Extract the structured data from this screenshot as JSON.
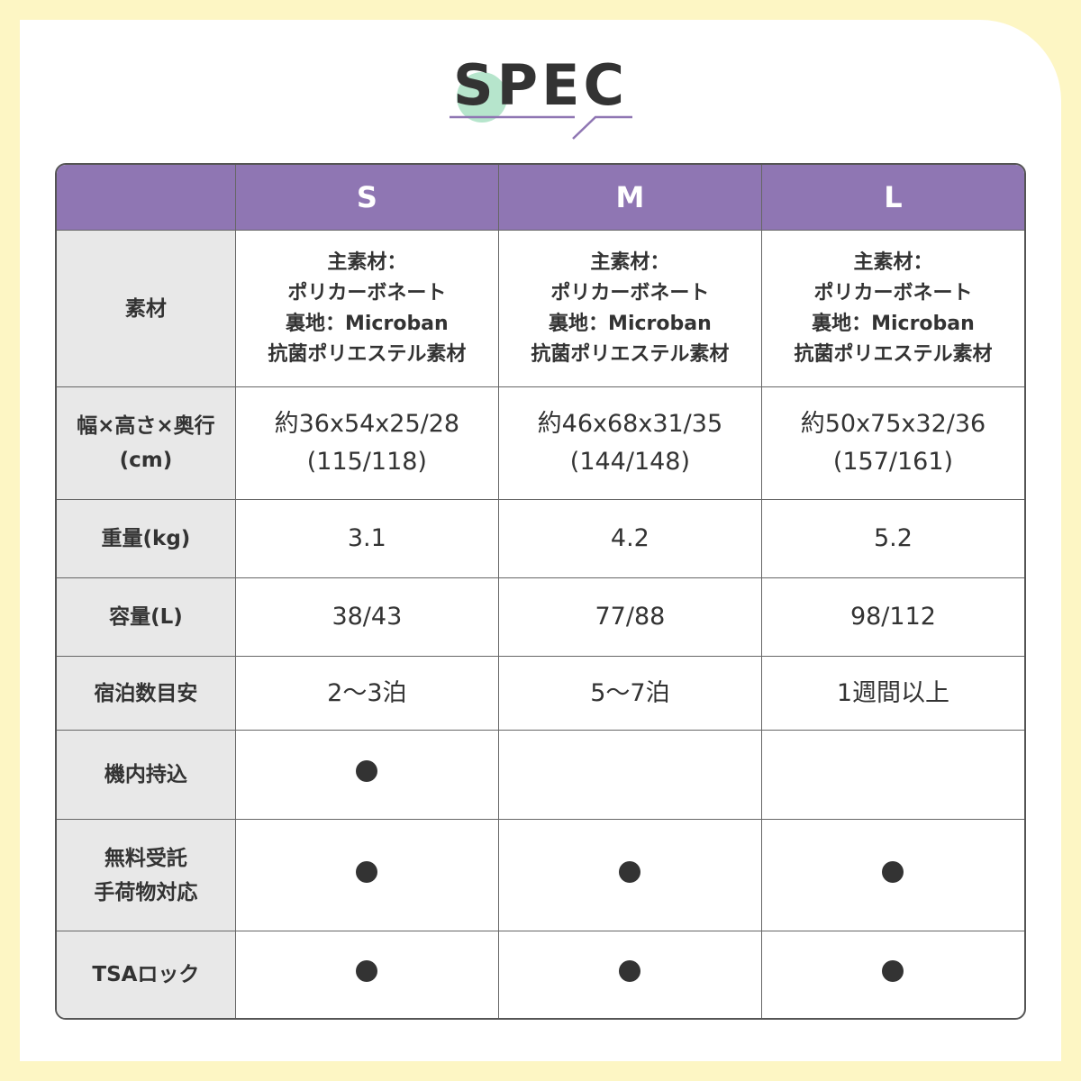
{
  "title": "SPEC",
  "colors": {
    "background": "#fdf6c4",
    "header": "#8f76b3",
    "label_bg": "#e8e8e8",
    "accent_circle": "#b6e5cc"
  },
  "columns": [
    "S",
    "M",
    "L"
  ],
  "rows": [
    {
      "label": [
        "素材"
      ],
      "values": [
        [
          "主素材：",
          "ポリカーボネート",
          "裏地：Microban",
          "抗菌ポリエステル素材"
        ],
        [
          "主素材：",
          "ポリカーボネート",
          "裏地：Microban",
          "抗菌ポリエステル素材"
        ],
        [
          "主素材：",
          "ポリカーボネート",
          "裏地：Microban",
          "抗菌ポリエステル素材"
        ]
      ]
    },
    {
      "label": [
        "幅×高さ×奥行",
        "(cm)"
      ],
      "values": [
        [
          "約36x54x25/28",
          "(115/118)"
        ],
        [
          "約46x68x31/35",
          "(144/148)"
        ],
        [
          "約50x75x32/36",
          "(157/161)"
        ]
      ]
    },
    {
      "label": [
        "重量(kg)"
      ],
      "values": [
        [
          "3.1"
        ],
        [
          "4.2"
        ],
        [
          "5.2"
        ]
      ]
    },
    {
      "label": [
        "容量(L)"
      ],
      "values": [
        [
          "38/43"
        ],
        [
          "77/88"
        ],
        [
          "98/112"
        ]
      ]
    },
    {
      "label": [
        "宿泊数目安"
      ],
      "values": [
        [
          "2〜3泊"
        ],
        [
          "5〜7泊"
        ],
        [
          "1週間以上"
        ]
      ]
    },
    {
      "label": [
        "機内持込"
      ],
      "values": [
        true,
        false,
        false
      ]
    },
    {
      "label": [
        "無料受託",
        "手荷物対応"
      ],
      "values": [
        true,
        true,
        true
      ]
    },
    {
      "label": [
        "TSAロック"
      ],
      "values": [
        true,
        true,
        true
      ]
    }
  ]
}
